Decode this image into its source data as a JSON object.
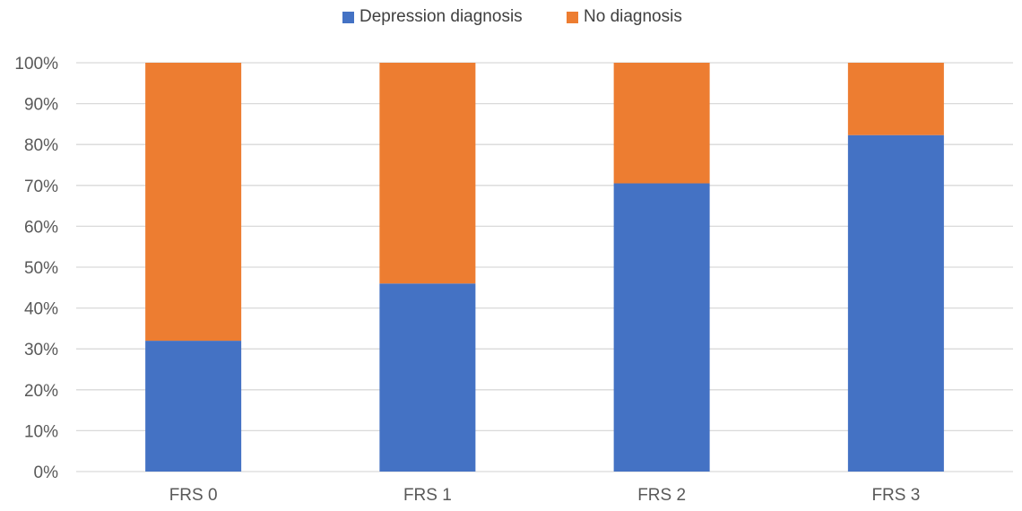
{
  "chart_data": {
    "type": "bar",
    "stacked": true,
    "categories": [
      "FRS 0",
      "FRS 1",
      "FRS  2",
      "FRS 3"
    ],
    "series": [
      {
        "name": "Depression diagnosis",
        "color": "#4472C4",
        "values": [
          32,
          46,
          70.5,
          82.3
        ]
      },
      {
        "name": "No diagnosis",
        "color": "#ED7D31",
        "values": [
          68,
          54,
          29.5,
          17.7
        ]
      }
    ],
    "title": "",
    "xlabel": "",
    "ylabel": "",
    "ylim": [
      0,
      100
    ],
    "yticks": [
      "0%",
      "10%",
      "20%",
      "30%",
      "40%",
      "50%",
      "60%",
      "70%",
      "80%",
      "90%",
      "100%"
    ],
    "grid": true,
    "legend_position": "top"
  }
}
